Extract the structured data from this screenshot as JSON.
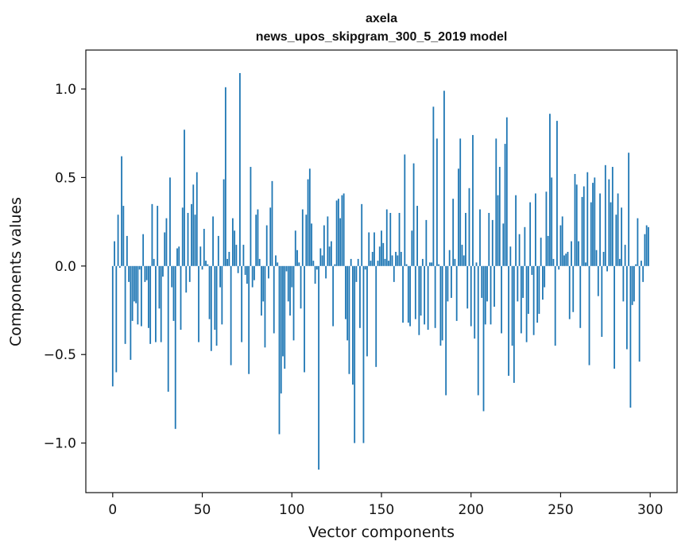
{
  "chart_data": {
    "type": "bar",
    "title": "axela",
    "subtitle": "news_upos_skipgram_300_5_2019 model",
    "xlabel": "Vector components",
    "ylabel": "Components values",
    "xlim": [
      -15,
      315
    ],
    "ylim": [
      -1.28,
      1.22
    ],
    "x_ticks": [
      0,
      50,
      100,
      150,
      200,
      250,
      300
    ],
    "y_ticks": [
      -1.0,
      -0.5,
      0.0,
      0.5,
      1.0
    ],
    "x_tick_labels": [
      "0",
      "50",
      "100",
      "150",
      "200",
      "250",
      "300"
    ],
    "y_tick_labels": [
      "−1.0",
      "−0.5",
      "0.0",
      "0.5",
      "1.0"
    ],
    "grid": false,
    "legend": "none",
    "bar_color": "#1f77b4",
    "series": [
      {
        "values": [
          -0.68,
          0.14,
          -0.6,
          0.29,
          -0.01,
          0.62,
          0.34,
          -0.44,
          0.17,
          -0.09,
          -0.53,
          -0.31,
          -0.2,
          -0.21,
          -0.33,
          -0.02,
          -0.34,
          0.18,
          -0.09,
          -0.08,
          -0.35,
          -0.44,
          0.35,
          0.04,
          -0.43,
          0.34,
          -0.24,
          -0.43,
          -0.06,
          0.19,
          0.27,
          -0.71,
          0.5,
          -0.12,
          -0.31,
          -0.92,
          0.1,
          0.11,
          -0.36,
          0.33,
          0.77,
          -0.15,
          0.3,
          -0.09,
          0.35,
          0.46,
          0.29,
          0.53,
          -0.43,
          0.11,
          -0.02,
          0.21,
          0.03,
          0.01,
          -0.3,
          -0.48,
          0.28,
          -0.36,
          -0.45,
          0.17,
          -0.12,
          -0.33,
          0.49,
          1.01,
          0.04,
          0.08,
          -0.56,
          0.27,
          0.2,
          0.12,
          -0.04,
          1.09,
          -0.43,
          0.12,
          -0.05,
          -0.1,
          -0.61,
          0.56,
          -0.12,
          -0.08,
          0.29,
          0.32,
          0.04,
          -0.28,
          -0.2,
          -0.46,
          0.23,
          -0.07,
          0.33,
          0.48,
          -0.38,
          0.06,
          0.02,
          -0.95,
          -0.72,
          -0.51,
          -0.58,
          -0.03,
          -0.2,
          -0.28,
          -0.12,
          -0.42,
          0.2,
          0.09,
          0.02,
          -0.24,
          0.32,
          -0.6,
          0.29,
          0.49,
          0.55,
          0.24,
          0.03,
          -0.1,
          -0.02,
          -1.15,
          0.1,
          0.06,
          0.23,
          -0.07,
          0.28,
          0.11,
          0.14,
          -0.34,
          0.01,
          0.37,
          0.38,
          0.27,
          0.4,
          0.41,
          -0.3,
          -0.42,
          -0.61,
          0.04,
          -0.67,
          -1.0,
          -0.09,
          0.04,
          -0.35,
          0.35,
          -1.0,
          -0.02,
          -0.51,
          0.19,
          0.03,
          0.08,
          0.19,
          -0.57,
          0.03,
          0.11,
          0.2,
          0.13,
          0.04,
          0.32,
          0.03,
          0.3,
          0.06,
          -0.09,
          0.08,
          0.06,
          0.3,
          0.08,
          -0.32,
          0.63,
          0.01,
          -0.32,
          -0.34,
          0.2,
          0.58,
          -0.3,
          0.34,
          -0.39,
          -0.28,
          0.04,
          -0.33,
          0.26,
          -0.36,
          0.02,
          0.02,
          0.9,
          -0.35,
          0.72,
          0.01,
          -0.45,
          -0.42,
          0.99,
          -0.73,
          -0.2,
          0.09,
          -0.18,
          0.38,
          0.04,
          -0.31,
          0.55,
          0.72,
          0.12,
          0.06,
          0.3,
          -0.24,
          0.44,
          -0.34,
          0.74,
          -0.41,
          0.02,
          -0.73,
          0.32,
          -0.18,
          -0.82,
          -0.33,
          -0.2,
          0.3,
          -0.33,
          0.26,
          -0.23,
          0.72,
          0.4,
          0.56,
          -0.38,
          0.24,
          0.69,
          0.84,
          -0.62,
          0.11,
          -0.45,
          -0.66,
          0.4,
          -0.2,
          0.18,
          -0.38,
          -0.18,
          0.22,
          -0.43,
          -0.27,
          0.36,
          -0.05,
          -0.39,
          0.41,
          -0.32,
          -0.27,
          0.16,
          -0.19,
          -0.12,
          0.42,
          0.17,
          0.86,
          0.5,
          0.04,
          -0.45,
          0.82,
          -0.02,
          0.23,
          0.28,
          0.06,
          0.07,
          0.08,
          -0.3,
          0.14,
          -0.26,
          0.52,
          0.46,
          0.14,
          -0.35,
          0.39,
          0.45,
          0.02,
          0.53,
          -0.56,
          0.36,
          0.47,
          0.5,
          0.09,
          -0.17,
          0.41,
          -0.4,
          0.08,
          0.57,
          -0.03,
          0.49,
          0.36,
          0.56,
          -0.58,
          0.29,
          0.41,
          0.04,
          0.33,
          -0.2,
          0.12,
          -0.47,
          0.64,
          -0.8,
          -0.22,
          -0.2,
          0.01,
          0.27,
          -0.54,
          0.03,
          -0.09,
          0.18,
          0.23,
          0.22
        ]
      }
    ]
  }
}
